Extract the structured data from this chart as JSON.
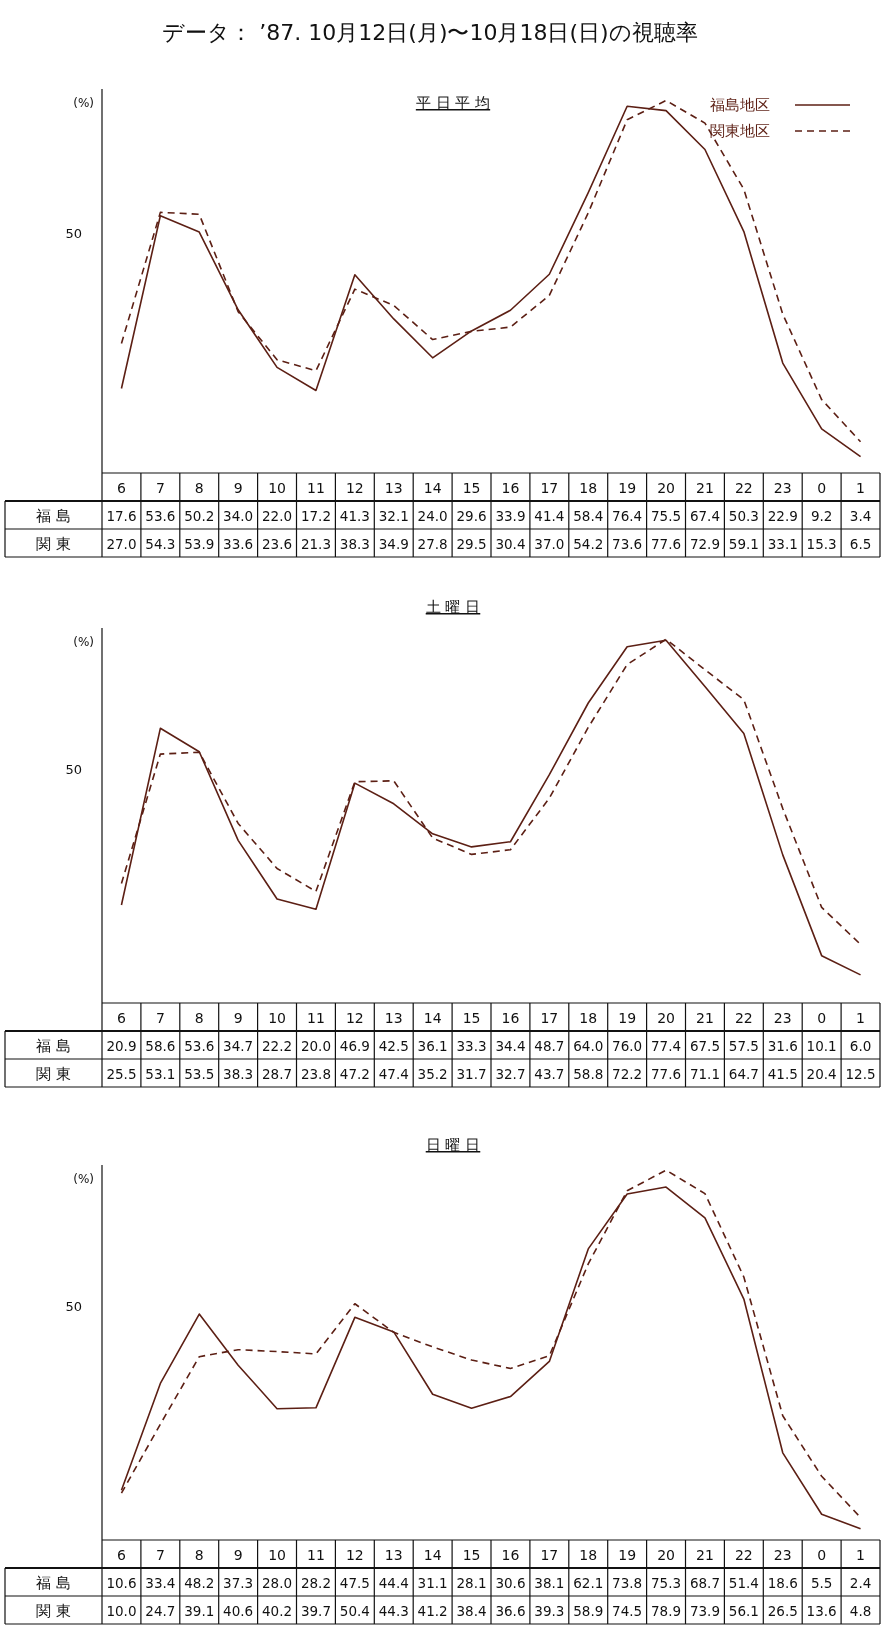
{
  "chart_data": [
    {
      "type": "line",
      "title": "データ： ’87. 10月12日(月)〜10月18日(日)の視聴率",
      "subtitle": "平 日 平 均",
      "annotations": [
        "50"
      ],
      "ylabel": "(%)",
      "ylim": [
        0,
        80
      ],
      "legend": "top right",
      "data_labels": true,
      "categories": [
        "6",
        "7",
        "8",
        "9",
        "10",
        "11",
        "12",
        "13",
        "14",
        "15",
        "16",
        "17",
        "18",
        "19",
        "20",
        "21",
        "22",
        "23",
        "0",
        "1"
      ],
      "y_categories": [
        "福 島",
        "関 東"
      ],
      "series": [
        {
          "name": "福島地区",
          "color": "#5c1f14",
          "line_style": "solid",
          "values": [
            17.6,
            53.6,
            50.2,
            34.0,
            22.0,
            17.2,
            41.3,
            32.1,
            24.0,
            29.6,
            33.9,
            41.4,
            58.4,
            76.4,
            75.5,
            67.4,
            50.3,
            22.9,
            9.2,
            3.4
          ],
          "value_labels": [
            "17.6",
            "53.6",
            "50.2",
            "34.0",
            "22.0",
            "17.2",
            "41.3",
            "32.1",
            "24.0",
            "29.6",
            "33.9",
            "41.4",
            "58.4",
            "76.4",
            "75.5",
            "67.4",
            "50.3",
            "22.9",
            "9.2",
            "3.4"
          ]
        },
        {
          "name": "関東地区",
          "color": "#5c1f14",
          "line_style": "dashed",
          "values": [
            27.0,
            54.3,
            53.9,
            33.6,
            23.6,
            21.3,
            38.3,
            34.9,
            27.8,
            29.5,
            30.4,
            37.0,
            54.2,
            73.6,
            77.6,
            72.9,
            59.1,
            33.1,
            15.3,
            6.5
          ],
          "value_labels": [
            "27.0",
            "54.3",
            "53.9",
            "33.6",
            "23.6",
            "21.3",
            "38.3",
            "34.9",
            "27.8",
            "29.5",
            "30.4",
            "37.0",
            "54.2",
            "73.6",
            "77.6",
            "72.9",
            "59.1",
            "33.1",
            "15.3",
            "6.5"
          ]
        }
      ]
    },
    {
      "type": "line",
      "subtitle": "土 曜 日",
      "annotations": [
        "50"
      ],
      "ylabel": "(%)",
      "ylim": [
        0,
        80
      ],
      "data_labels": true,
      "categories": [
        "6",
        "7",
        "8",
        "9",
        "10",
        "11",
        "12",
        "13",
        "14",
        "15",
        "16",
        "17",
        "18",
        "19",
        "20",
        "21",
        "22",
        "23",
        "0",
        "1"
      ],
      "y_categories": [
        "福 島",
        "関 東"
      ],
      "series": [
        {
          "color": "#5c1f14",
          "line_style": "solid",
          "values": [
            20.9,
            58.6,
            53.6,
            34.7,
            22.2,
            20.0,
            46.9,
            42.5,
            36.1,
            33.3,
            34.4,
            48.7,
            64.0,
            76.0,
            77.4,
            67.5,
            57.5,
            31.6,
            10.1,
            6.0
          ],
          "value_labels": [
            "20.9",
            "58.6",
            "53.6",
            "34.7",
            "22.2",
            "20.0",
            "46.9",
            "42.5",
            "36.1",
            "33.3",
            "34.4",
            "48.7",
            "64.0",
            "76.0",
            "77.4",
            "67.5",
            "57.5",
            "31.6",
            "10.1",
            "6.0"
          ]
        },
        {
          "color": "#5c1f14",
          "line_style": "dashed",
          "values": [
            25.5,
            53.1,
            53.5,
            38.3,
            28.7,
            23.8,
            47.2,
            47.4,
            35.2,
            31.7,
            32.7,
            43.7,
            58.8,
            72.2,
            77.6,
            71.1,
            64.7,
            41.5,
            20.4,
            12.5
          ],
          "value_labels": [
            "25.5",
            "53.1",
            "53.5",
            "38.3",
            "28.7",
            "23.8",
            "47.2",
            "47.4",
            "35.2",
            "31.7",
            "32.7",
            "43.7",
            "58.8",
            "72.2",
            "77.6",
            "71.1",
            "64.7",
            "41.5",
            "20.4",
            "12.5"
          ]
        }
      ]
    },
    {
      "type": "line",
      "subtitle": "日 曜 日",
      "annotations": [
        "50"
      ],
      "ylabel": "(%)",
      "ylim": [
        0,
        80
      ],
      "data_labels": true,
      "categories": [
        "6",
        "7",
        "8",
        "9",
        "10",
        "11",
        "12",
        "13",
        "14",
        "15",
        "16",
        "17",
        "18",
        "19",
        "20",
        "21",
        "22",
        "23",
        "0",
        "1"
      ],
      "y_categories": [
        "福 島",
        "関 東"
      ],
      "series": [
        {
          "color": "#5c1f14",
          "line_style": "solid",
          "values": [
            10.6,
            33.4,
            48.2,
            37.3,
            28.0,
            28.2,
            47.5,
            44.4,
            31.1,
            28.1,
            30.6,
            38.1,
            62.1,
            73.8,
            75.3,
            68.7,
            51.4,
            18.6,
            5.5,
            2.4
          ],
          "value_labels": [
            "10.6",
            "33.4",
            "48.2",
            "37.3",
            "28.0",
            "28.2",
            "47.5",
            "44.4",
            "31.1",
            "28.1",
            "30.6",
            "38.1",
            "62.1",
            "73.8",
            "75.3",
            "68.7",
            "51.4",
            "18.6",
            "5.5",
            "2.4"
          ]
        },
        {
          "color": "#5c1f14",
          "line_style": "dashed",
          "values": [
            10.0,
            24.7,
            39.1,
            40.6,
            40.2,
            39.7,
            50.4,
            44.3,
            41.2,
            38.4,
            36.6,
            39.3,
            58.9,
            74.5,
            78.9,
            73.9,
            56.1,
            26.5,
            13.6,
            4.8
          ],
          "value_labels": [
            "10.0",
            "24.7",
            "39.1",
            "40.6",
            "40.2",
            "39.7",
            "50.4",
            "44.3",
            "41.2",
            "38.4",
            "36.6",
            "39.3",
            "58.9",
            "74.5",
            "78.9",
            "73.9",
            "56.1",
            "26.5",
            "13.6",
            "4.8"
          ]
        }
      ]
    }
  ]
}
